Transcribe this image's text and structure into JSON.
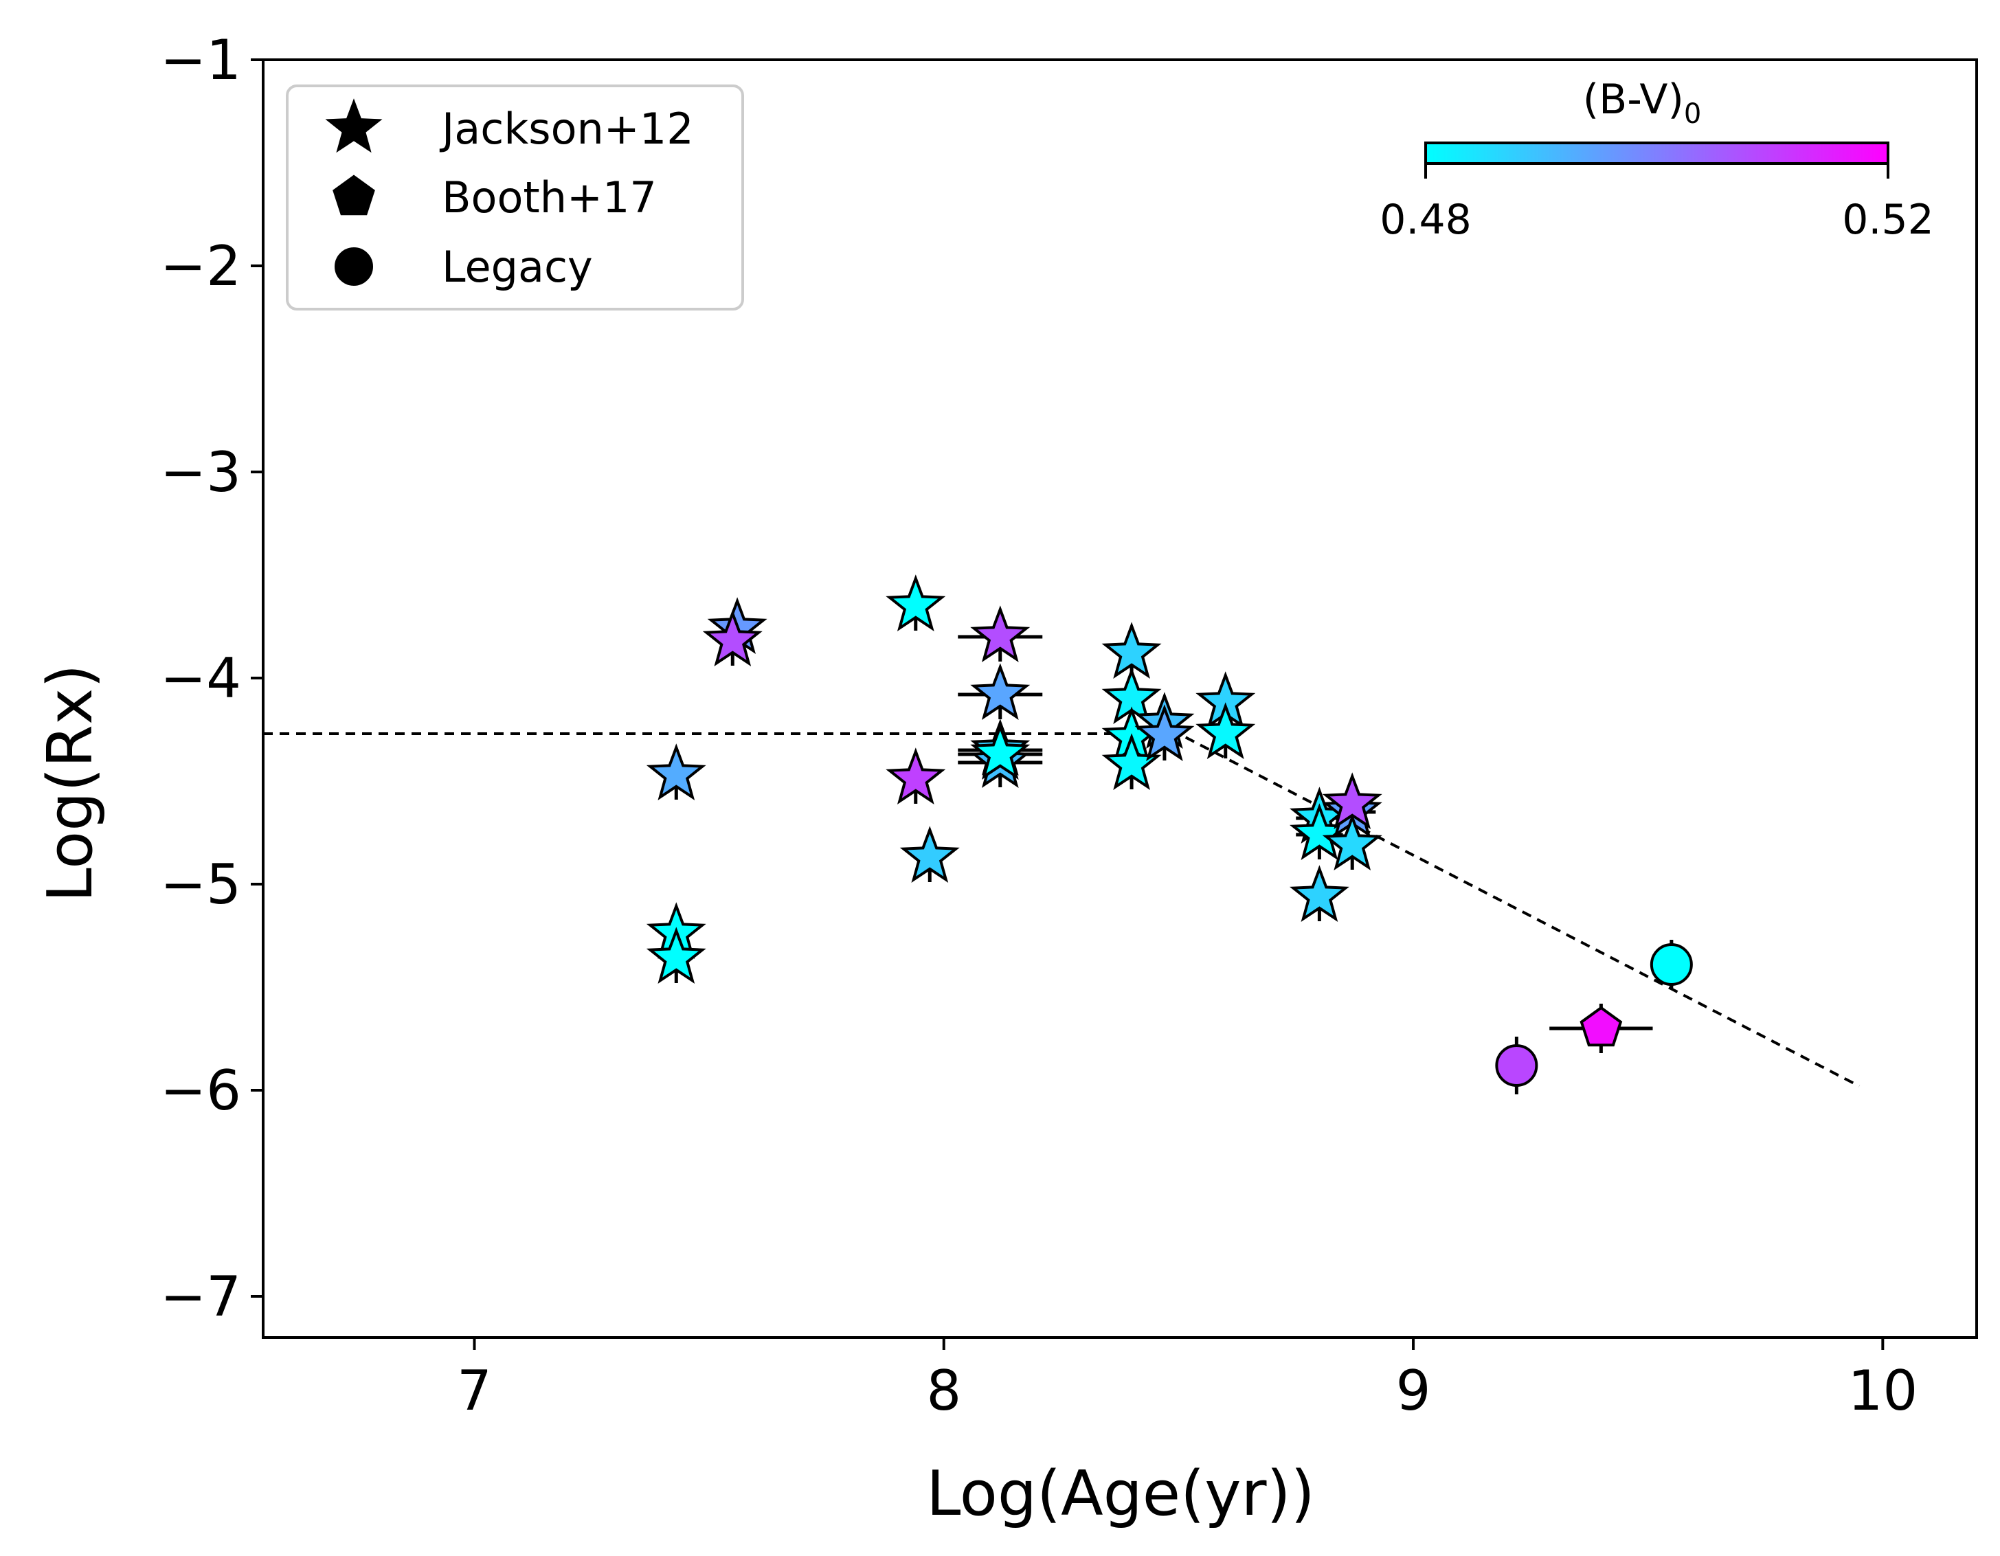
{
  "chart_data": {
    "type": "scatter",
    "title": "",
    "xlabel": "Log(Age(yr))",
    "ylabel": "Log(Rx)",
    "xlim": [
      6.55,
      10.2
    ],
    "ylim": [
      -7.2,
      -1.0
    ],
    "xticks": [
      7,
      8,
      9,
      10
    ],
    "yticks": [
      -1,
      -2,
      -3,
      -4,
      -5,
      -6,
      -7
    ],
    "grid": false,
    "legend": {
      "placement": "top-left",
      "entries": [
        {
          "label": "Jackson+12",
          "marker": "star"
        },
        {
          "label": "Booth+17",
          "marker": "pentagon"
        },
        {
          "label": "Legacy",
          "marker": "circle"
        }
      ]
    },
    "colorbar": {
      "label_main": "(B-V)",
      "label_sub": "0",
      "min": 0.48,
      "max": 0.52,
      "min_label": "0.48",
      "max_label": "0.52",
      "color_min": "#00ffff",
      "color_max": "#ff00ff",
      "placement": "top-right"
    },
    "fit_line": {
      "style": "dashed",
      "points": [
        [
          6.55,
          -4.27
        ],
        [
          8.5,
          -4.27
        ],
        [
          9.95,
          -5.98
        ]
      ]
    },
    "series": [
      {
        "name": "Jackson+12",
        "marker": "star",
        "points": [
          {
            "x": 7.43,
            "y": -4.47,
            "bv": 0.493
          },
          {
            "x": 7.43,
            "y": -5.24,
            "bv": 0.48
          },
          {
            "x": 7.43,
            "y": -5.36,
            "bv": 0.48
          },
          {
            "x": 7.56,
            "y": -3.76,
            "bv": 0.496
          },
          {
            "x": 7.55,
            "y": -3.82,
            "bv": 0.508
          },
          {
            "x": 7.94,
            "y": -3.65,
            "bv": 0.48
          },
          {
            "x": 7.94,
            "y": -4.49,
            "bv": 0.51
          },
          {
            "x": 7.97,
            "y": -4.87,
            "bv": 0.488
          },
          {
            "x": 8.12,
            "y": -3.8,
            "bv": 0.508,
            "xerr": 0.09
          },
          {
            "x": 8.12,
            "y": -4.08,
            "bv": 0.494,
            "xerr": 0.09
          },
          {
            "x": 8.12,
            "y": -4.35,
            "bv": 0.488,
            "xerr": 0.09
          },
          {
            "x": 8.12,
            "y": -4.41,
            "bv": 0.49,
            "xerr": 0.09
          },
          {
            "x": 8.12,
            "y": -4.37,
            "bv": 0.48,
            "xerr": 0.09
          },
          {
            "x": 8.4,
            "y": -3.88,
            "bv": 0.487
          },
          {
            "x": 8.4,
            "y": -4.1,
            "bv": 0.482
          },
          {
            "x": 8.4,
            "y": -4.29,
            "bv": 0.48
          },
          {
            "x": 8.4,
            "y": -4.42,
            "bv": 0.481
          },
          {
            "x": 8.47,
            "y": -4.22,
            "bv": 0.49
          },
          {
            "x": 8.47,
            "y": -4.28,
            "bv": 0.494
          },
          {
            "x": 8.6,
            "y": -4.12,
            "bv": 0.487
          },
          {
            "x": 8.6,
            "y": -4.27,
            "bv": 0.481
          },
          {
            "x": 8.8,
            "y": -4.68,
            "bv": 0.484,
            "xerr": 0.05
          },
          {
            "x": 8.8,
            "y": -4.76,
            "bv": 0.481,
            "xerr": 0.05
          },
          {
            "x": 8.8,
            "y": -5.06,
            "bv": 0.487
          },
          {
            "x": 8.87,
            "y": -4.65,
            "bv": 0.495,
            "xerr": 0.05
          },
          {
            "x": 8.87,
            "y": -4.61,
            "bv": 0.508,
            "xerr": 0.05
          },
          {
            "x": 8.87,
            "y": -4.81,
            "bv": 0.486
          }
        ]
      },
      {
        "name": "Booth+17",
        "marker": "pentagon",
        "points": [
          {
            "x": 9.4,
            "y": -5.7,
            "bv": 0.518,
            "xerr": 0.11,
            "yerr": 0.12
          }
        ]
      },
      {
        "name": "Legacy",
        "marker": "circle",
        "points": [
          {
            "x": 9.22,
            "y": -5.88,
            "bv": 0.509,
            "yerr": 0.14
          },
          {
            "x": 9.55,
            "y": -5.39,
            "bv": 0.48
          }
        ]
      }
    ]
  }
}
